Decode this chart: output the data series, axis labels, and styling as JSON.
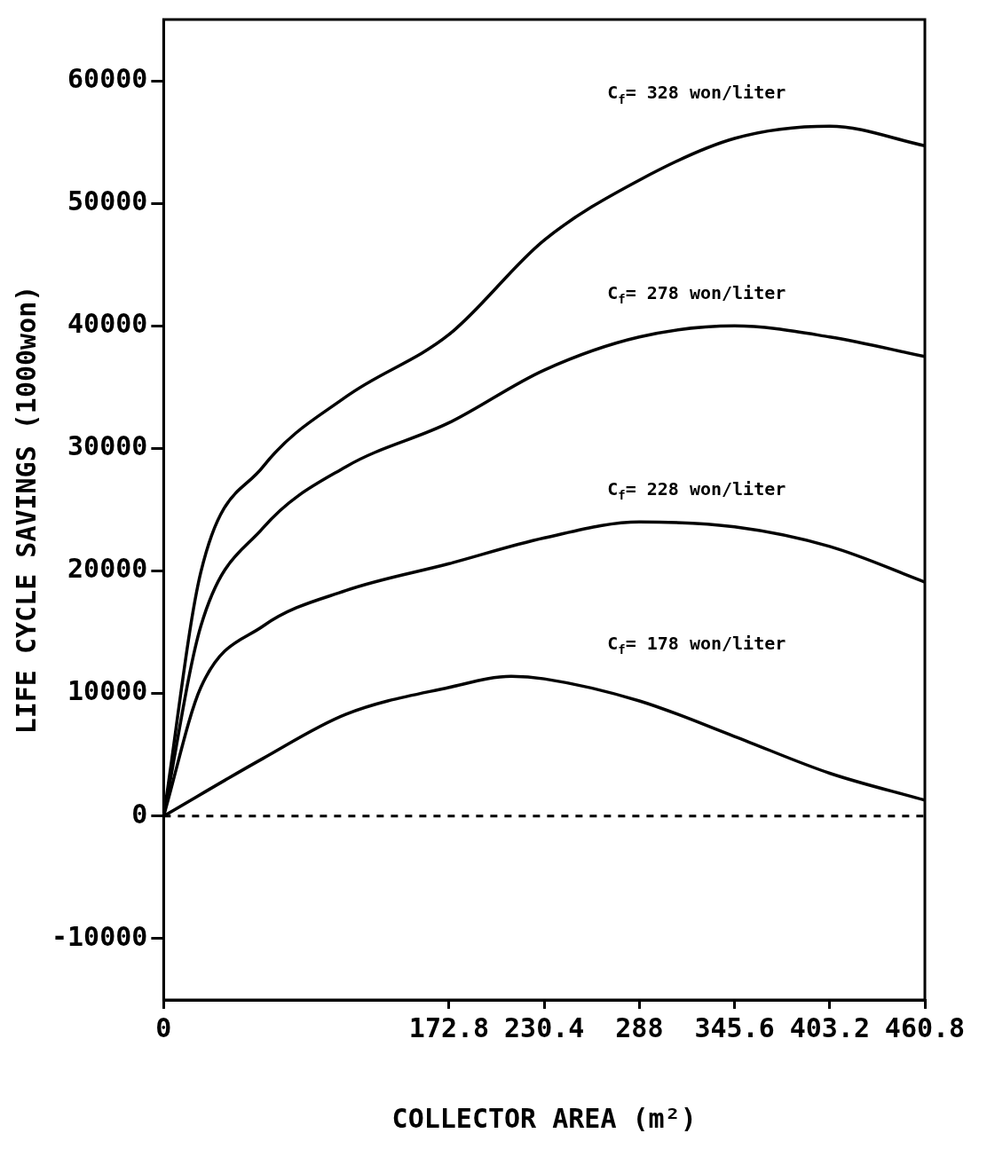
{
  "chart_data": {
    "type": "line",
    "xlabel": "COLLECTOR AREA (m²)",
    "ylabel": "LIFE CYCLE SAVINGS (1000won)",
    "xlim": [
      0,
      460.8
    ],
    "xticks": [
      0,
      172.8,
      230.4,
      288,
      345.6,
      403.2,
      460.8
    ],
    "ylim": [
      -15000,
      65000
    ],
    "yticks": [
      -10000,
      0,
      10000,
      20000,
      30000,
      40000,
      50000,
      60000
    ],
    "series": [
      {
        "name": "C$_{f}$= 328 won/liter",
        "color": "#000000",
        "x": [
          0,
          22.5,
          60.1,
          110.2,
          172.8,
          230.4,
          288,
          345.6,
          403.2,
          460.8
        ],
        "values": [
          0,
          19900,
          28500,
          34200,
          39300,
          47000,
          51900,
          55300,
          56300,
          54700
        ]
      },
      {
        "name": "C$_{f}$= 278 won/liter",
        "color": "#000000",
        "x": [
          0,
          22.5,
          60.1,
          110.2,
          172.8,
          230.4,
          288,
          345.6,
          403.2,
          460.8
        ],
        "values": [
          0,
          15500,
          23500,
          28500,
          32100,
          36400,
          39100,
          40000,
          39100,
          37500
        ]
      },
      {
        "name": "C$_{f}$= 228 won/liter",
        "color": "#000000",
        "x": [
          0,
          22.5,
          60.1,
          110.2,
          172.8,
          230.4,
          288,
          345.6,
          403.2,
          460.8
        ],
        "values": [
          0,
          10500,
          15500,
          18400,
          20600,
          22700,
          24000,
          23600,
          22000,
          19100
        ]
      },
      {
        "name": "C$_{f}$= 178 won/liter",
        "color": "#000000",
        "x": [
          0,
          60.1,
          110.2,
          172.8,
          210.4,
          230.4,
          288,
          345.6,
          403.2,
          460.8
        ],
        "values": [
          0,
          4700,
          8300,
          10500,
          11400,
          11200,
          9400,
          6500,
          3500,
          1300
        ]
      }
    ],
    "ref_lines": [
      {
        "axis": "y",
        "value": 0,
        "line_style": "dashed",
        "color": "#000000"
      }
    ],
    "grid": false,
    "legend": false,
    "marker": "none",
    "line_style": "solid"
  }
}
